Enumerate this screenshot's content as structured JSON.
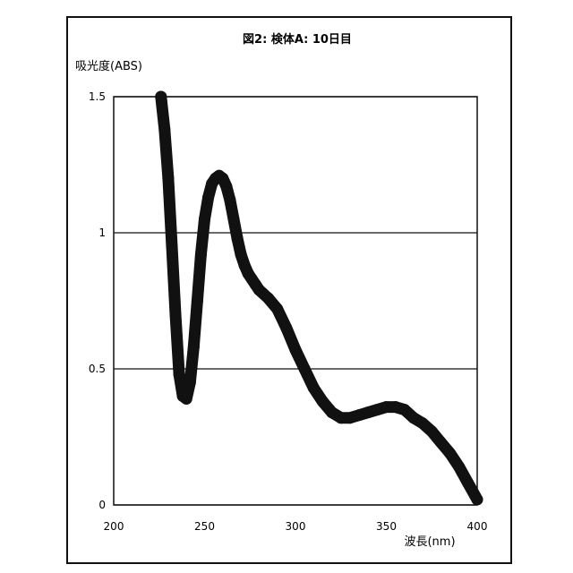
{
  "chart_data": {
    "type": "line",
    "title": "図2: 検体A: 10日目",
    "xlabel": "波長(nm)",
    "ylabel": "吸光度(ABS)",
    "xlim": [
      200,
      400
    ],
    "ylim": [
      0,
      1.5
    ],
    "xticks": [
      "200",
      "250",
      "300",
      "350",
      "400"
    ],
    "yticks": [
      "0",
      "0.5",
      "1",
      "1.5"
    ],
    "grid": "horizontal",
    "legend": "none",
    "series": [
      {
        "x": [
          226,
          228,
          230,
          232,
          234,
          236,
          238,
          240,
          242,
          244,
          246,
          248,
          250,
          252,
          254,
          256,
          258,
          260,
          262,
          264,
          266,
          268,
          270,
          272,
          274,
          276,
          278,
          280,
          285,
          290,
          295,
          300,
          305,
          310,
          315,
          320,
          325,
          330,
          335,
          340,
          345,
          350,
          355,
          360,
          365,
          370,
          375,
          380,
          385,
          390,
          395,
          400
        ],
        "values": [
          1.5,
          1.38,
          1.2,
          0.95,
          0.7,
          0.48,
          0.4,
          0.39,
          0.45,
          0.58,
          0.75,
          0.92,
          1.05,
          1.13,
          1.18,
          1.2,
          1.21,
          1.2,
          1.17,
          1.12,
          1.05,
          0.98,
          0.92,
          0.88,
          0.85,
          0.83,
          0.81,
          0.79,
          0.76,
          0.72,
          0.65,
          0.57,
          0.5,
          0.43,
          0.38,
          0.34,
          0.32,
          0.32,
          0.33,
          0.34,
          0.35,
          0.36,
          0.36,
          0.35,
          0.32,
          0.3,
          0.27,
          0.23,
          0.19,
          0.14,
          0.08,
          0.02
        ]
      }
    ]
  }
}
